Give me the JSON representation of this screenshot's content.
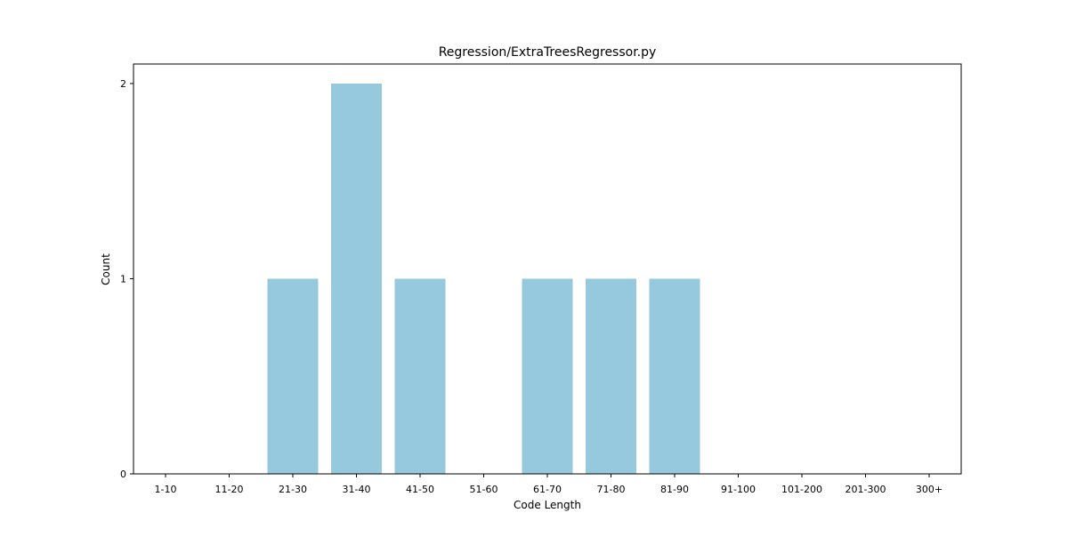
{
  "chart_data": {
    "type": "bar",
    "title": "Regression/ExtraTreesRegressor.py",
    "xlabel": "Code Length",
    "ylabel": "Count",
    "categories": [
      "1-10",
      "11-20",
      "21-30",
      "31-40",
      "41-50",
      "51-60",
      "61-70",
      "71-80",
      "81-90",
      "91-100",
      "101-200",
      "201-300",
      "300+"
    ],
    "values": [
      0,
      0,
      1,
      2,
      1,
      0,
      1,
      1,
      1,
      0,
      0,
      0,
      0
    ],
    "ylim": [
      0,
      2.1
    ],
    "yticks": [
      0,
      1,
      2
    ],
    "bar_color": "#96c9de",
    "grid": false,
    "legend": "none"
  }
}
